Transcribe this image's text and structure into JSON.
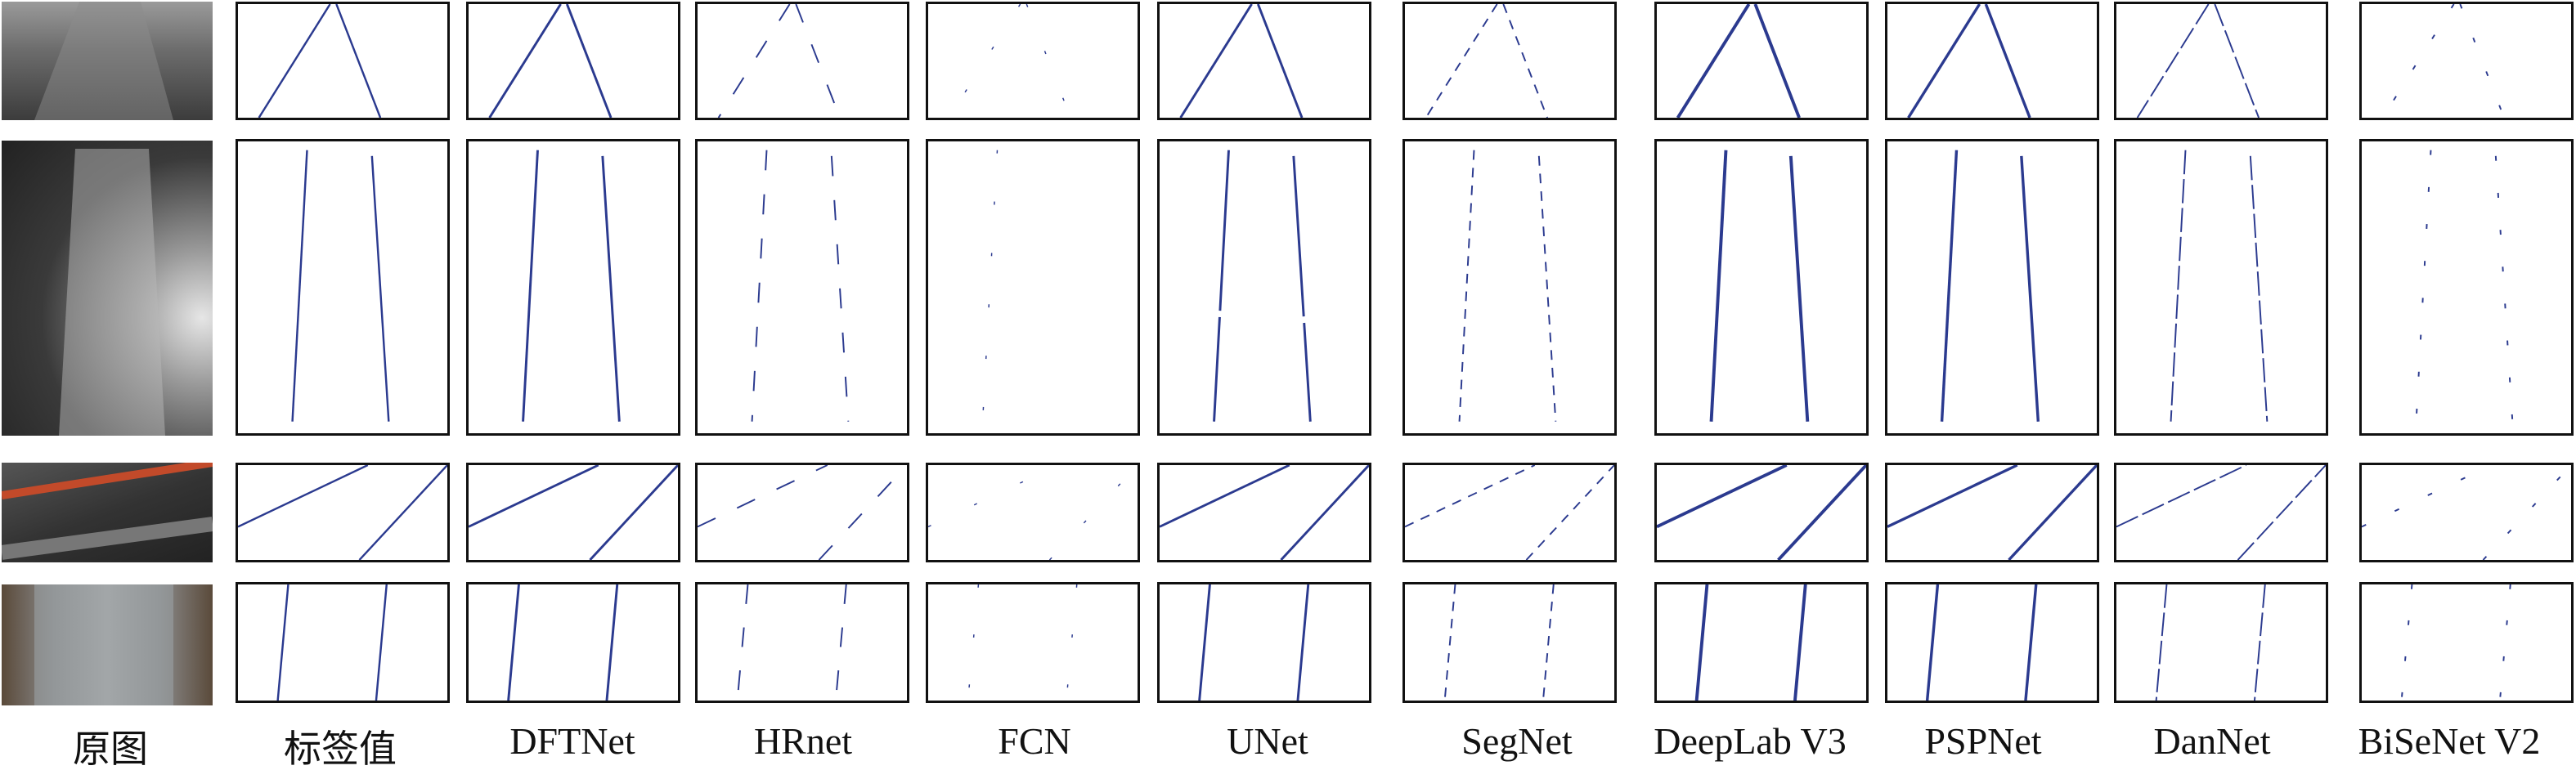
{
  "column_labels": {
    "original": "原图",
    "label": "标签值",
    "m1": "DFTNet",
    "m2": "HRnet",
    "m3": "FCN",
    "m4": "UNet",
    "m5": "SegNet",
    "m6": "DeepLab V3",
    "m7": "PSPNet",
    "m8": "DanNet",
    "m9": "BiSeNet V2"
  },
  "colors": {
    "line": "#2b3a8f",
    "border": "#111111"
  }
}
